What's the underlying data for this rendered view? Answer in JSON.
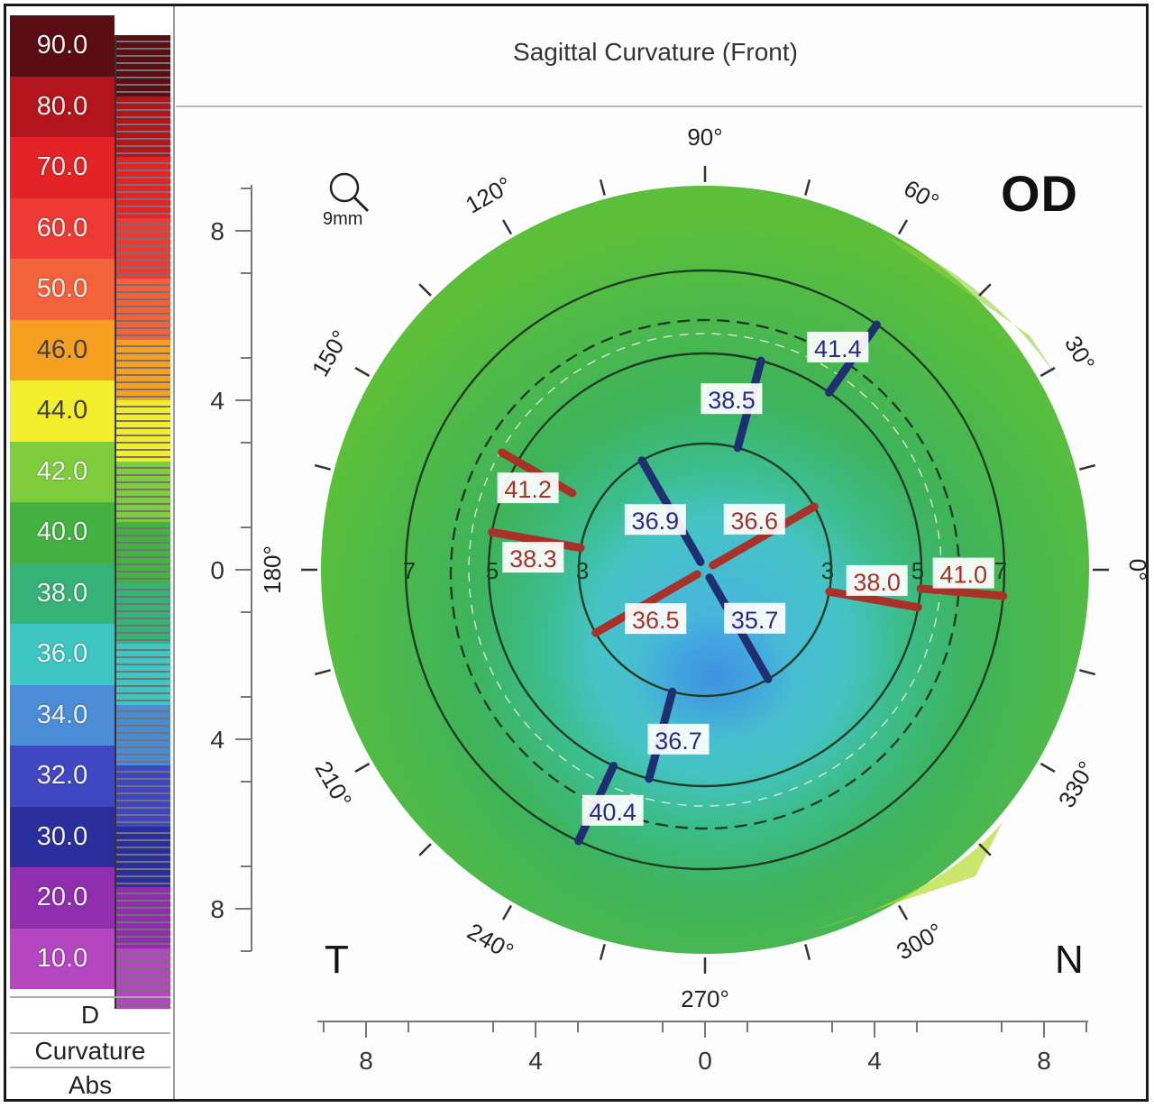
{
  "chart_data": {
    "type": "heatmap",
    "title": "Sagittal Curvature (Front)",
    "eye": "OD",
    "side_labels": {
      "left": "T",
      "right": "N"
    },
    "zoom": "9mm",
    "units": "D",
    "legend_footer": [
      "D",
      "Curvature",
      "Abs"
    ],
    "color_scale": [
      {
        "value": "90.0",
        "color": "#5a0d12"
      },
      {
        "value": "80.0",
        "color": "#b3151c"
      },
      {
        "value": "70.0",
        "color": "#e32326"
      },
      {
        "value": "60.0",
        "color": "#ee3a34"
      },
      {
        "value": "50.0",
        "color": "#f4623c"
      },
      {
        "value": "46.0",
        "color": "#f5a020"
      },
      {
        "value": "44.0",
        "color": "#f2ee2c"
      },
      {
        "value": "42.0",
        "color": "#7fcd3c"
      },
      {
        "value": "40.0",
        "color": "#43b243"
      },
      {
        "value": "38.0",
        "color": "#36b278"
      },
      {
        "value": "36.0",
        "color": "#3ec6c2"
      },
      {
        "value": "34.0",
        "color": "#4a8dd6"
      },
      {
        "value": "32.0",
        "color": "#4047c2"
      },
      {
        "value": "30.0",
        "color": "#2b2f9e"
      },
      {
        "value": "20.0",
        "color": "#8f2fae"
      },
      {
        "value": "10.0",
        "color": "#b446c0"
      }
    ],
    "angle_labels": [
      "90°",
      "60°",
      "30°",
      "0°",
      "330°",
      "300°",
      "270°",
      "240°",
      "210°",
      "180°",
      "150°",
      "120°"
    ],
    "axis_ticks_y": [
      "8",
      "4",
      "0",
      "4",
      "8"
    ],
    "axis_ticks_x": [
      "8",
      "4",
      "0",
      "4",
      "8"
    ],
    "ring_labels": [
      "7",
      "5",
      "3",
      "3",
      "5",
      "7"
    ],
    "readings": [
      {
        "value": "41.2",
        "axis": "steep",
        "angle": 150,
        "ring": 5
      },
      {
        "value": "38.5",
        "axis": "flat",
        "angle": 75,
        "ring": 4
      },
      {
        "value": "41.4",
        "axis": "flat",
        "angle": 55,
        "ring": 6
      },
      {
        "value": "36.9",
        "axis": "flat",
        "angle": 120,
        "ring": 2
      },
      {
        "value": "36.6",
        "axis": "steep",
        "angle": 30,
        "ring": 2
      },
      {
        "value": "38.3",
        "axis": "steep",
        "angle": 170,
        "ring": 4
      },
      {
        "value": "38.0",
        "axis": "steep",
        "angle": 350,
        "ring": 4
      },
      {
        "value": "41.0",
        "axis": "steep",
        "angle": 355,
        "ring": 6
      },
      {
        "value": "36.5",
        "axis": "steep",
        "angle": 210,
        "ring": 2
      },
      {
        "value": "35.7",
        "axis": "flat",
        "angle": 300,
        "ring": 2
      },
      {
        "value": "36.7",
        "axis": "flat",
        "angle": 255,
        "ring": 4
      },
      {
        "value": "40.4",
        "axis": "flat",
        "angle": 245,
        "ring": 6
      }
    ]
  }
}
